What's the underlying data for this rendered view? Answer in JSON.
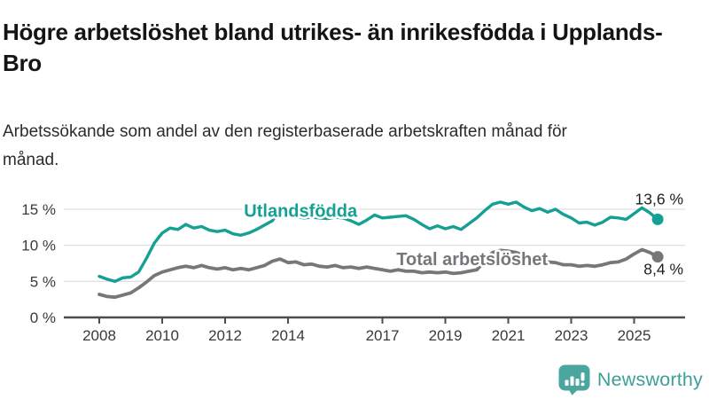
{
  "header": {
    "title": "Högre arbetslöshet bland utrikes- än inrikesfödda i Upplands-Bro",
    "subtitle": "Arbetssökande som andel av den registerbaserade arbetskraften månad för månad."
  },
  "branding": {
    "logo_text": "Newsworthy",
    "logo_icon": "bar-chart-speech-bubble-icon",
    "logo_color": "#4ba6a0",
    "logo_text_color": "#3e9f98"
  },
  "chart_data": {
    "type": "line",
    "title": "Arbetssökande som andel av den registerbaserade arbetskraften månad för månad",
    "xlabel": "",
    "ylabel": "",
    "grid": "horizontal",
    "ylim": [
      0,
      16.8
    ],
    "xlim": [
      2006.85,
      2026.5
    ],
    "y_tick_values": [
      0,
      5,
      10,
      15
    ],
    "y_tick_labels": [
      "0 %",
      "5 %",
      "10 %",
      "15 %"
    ],
    "x_tick_years": [
      2008,
      2010,
      2012,
      2014,
      2017,
      2019,
      2021,
      2023,
      2025
    ],
    "axis_color": "#4d4d4d",
    "grid_color": "#e1e1e1",
    "tick_label_color": "#3a3a3a",
    "end_label_color": "#1f1f1f",
    "x": [
      2008.0,
      2008.25,
      2008.5,
      2008.75,
      2009.0,
      2009.25,
      2009.5,
      2009.75,
      2010.0,
      2010.25,
      2010.5,
      2010.75,
      2011.0,
      2011.25,
      2011.5,
      2011.75,
      2012.0,
      2012.25,
      2012.5,
      2012.75,
      2013.0,
      2013.25,
      2013.5,
      2013.75,
      2014.0,
      2014.25,
      2014.5,
      2014.75,
      2015.0,
      2015.25,
      2015.5,
      2015.75,
      2016.0,
      2016.25,
      2016.5,
      2016.75,
      2017.0,
      2017.25,
      2017.5,
      2017.75,
      2018.0,
      2018.25,
      2018.5,
      2018.75,
      2019.0,
      2019.25,
      2019.5,
      2019.75,
      2020.0,
      2020.25,
      2020.5,
      2020.75,
      2021.0,
      2021.25,
      2021.5,
      2021.75,
      2022.0,
      2022.25,
      2022.5,
      2022.75,
      2023.0,
      2023.25,
      2023.5,
      2023.75,
      2024.0,
      2024.25,
      2024.5,
      2024.75,
      2025.0,
      2025.25,
      2025.5,
      2025.75
    ],
    "series": [
      {
        "name": "Utlandsfödda",
        "color": "#14a093",
        "line_width": 3.4,
        "end_label": "13,6 %",
        "end_value": 13.6,
        "label_pos": {
          "x": 2014.4,
          "y": 14.8
        },
        "values": [
          5.7,
          5.3,
          5.0,
          5.5,
          5.6,
          6.3,
          8.2,
          10.3,
          11.7,
          12.4,
          12.2,
          12.9,
          12.4,
          12.6,
          12.1,
          11.9,
          12.1,
          11.6,
          11.4,
          11.7,
          12.2,
          12.8,
          13.4,
          14.9,
          14.2,
          14.0,
          13.8,
          13.9,
          13.8,
          13.7,
          13.9,
          13.8,
          13.4,
          12.9,
          13.5,
          14.2,
          13.8,
          13.9,
          14.0,
          14.1,
          13.6,
          12.9,
          12.3,
          12.7,
          12.3,
          12.6,
          12.2,
          13.0,
          13.8,
          14.8,
          15.7,
          16.0,
          15.7,
          16.0,
          15.3,
          14.8,
          15.1,
          14.6,
          15.0,
          14.3,
          13.8,
          13.1,
          13.2,
          12.8,
          13.2,
          13.9,
          13.8,
          13.6,
          14.4,
          15.2,
          14.5,
          13.6
        ]
      },
      {
        "name": "Total arbetslöshet",
        "color": "#77777b",
        "line_width": 3.8,
        "end_label": "8,4 %",
        "end_value": 8.4,
        "label_pos": {
          "x": 2019.85,
          "y": 8.1
        },
        "values": [
          3.2,
          2.9,
          2.8,
          3.1,
          3.4,
          4.1,
          4.9,
          5.8,
          6.3,
          6.6,
          6.9,
          7.1,
          6.9,
          7.2,
          6.9,
          6.7,
          6.9,
          6.6,
          6.8,
          6.6,
          6.9,
          7.2,
          7.8,
          8.1,
          7.6,
          7.7,
          7.3,
          7.4,
          7.1,
          7.0,
          7.2,
          6.9,
          7.0,
          6.8,
          7.0,
          6.8,
          6.6,
          6.4,
          6.6,
          6.4,
          6.4,
          6.2,
          6.3,
          6.2,
          6.3,
          6.1,
          6.2,
          6.4,
          6.6,
          7.8,
          9.0,
          9.3,
          9.2,
          9.0,
          8.6,
          8.2,
          7.9,
          7.7,
          7.6,
          7.3,
          7.3,
          7.1,
          7.2,
          7.1,
          7.3,
          7.6,
          7.7,
          8.1,
          8.8,
          9.4,
          9.0,
          8.4
        ]
      }
    ]
  }
}
